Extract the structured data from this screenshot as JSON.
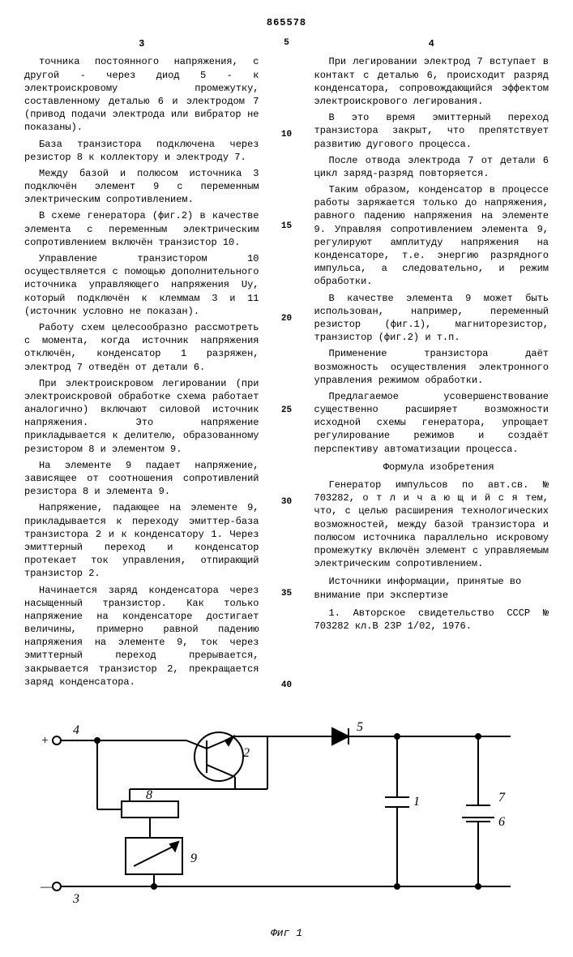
{
  "patent_number": "865578",
  "left_col_num": "3",
  "right_col_num": "4",
  "line_markers": [
    "5",
    "10",
    "15",
    "20",
    "25",
    "30",
    "35",
    "40"
  ],
  "left_paragraphs": [
    "точника постоянного напряжения, с другой - через диод 5 - к электроискровому промежутку, составленному деталью 6 и электродом 7 (привод подачи электрода или вибратор не показаны).",
    "База транзистора подключена через резистор 8 к коллектору и электроду 7.",
    "Между базой и полюсом источника 3 подключён элемент 9 с переменным электрическим сопротивлением.",
    "В схеме генератора (фиг.2) в качестве элемента с переменным электрическим сопротивлением включён транзистор 10.",
    "Управление транзистором 10 осуществляется с помощью дополнительного источника управляющего напряжения Uу, который подключён к клеммам 3 и 11 (источник условно не показан).",
    "Работу схем целесообразно рассмотреть с момента, когда источник напряжения отключён, конденсатор 1 разряжен, электрод 7 отведён от детали 6.",
    "При электроискровом легировании (при электроискровой обработке схема работает аналогично) включают силовой источник напряжения. Это напряжение прикладывается к делителю, образованному резистором 8 и элементом 9.",
    "На элементе 9 падает напряжение, зависящее от соотношения сопротивлений резистора 8 и элемента 9.",
    "Напряжение, падающее на элементе 9, прикладывается к переходу эмиттер-база транзистора 2 и к конденсатору 1. Через эмиттерный переход и конденсатор протекает ток управления, отпирающий транзистор 2.",
    "Начинается заряд конденсатора через насыщенный транзистор. Как только напряжение на конденсаторе достигает величины, примерно равной падению напряжения на элементе 9, ток через эмиттерный переход прерывается, закрывается транзистор 2, прекращается заряд конденсатора."
  ],
  "right_paragraphs": [
    "При легировании электрод 7 вступает в контакт с деталью 6, происходит разряд конденсатора, сопровождающийся эффектом электроискрового легирования.",
    "В это время эмиттерный переход транзистора закрыт, что препятствует развитию дугового процесса.",
    "После отвода электрода 7 от детали 6 цикл заряд-разряд повторяется.",
    "Таким образом, конденсатор в процессе работы заряжается только до напряжения, равного падению напряжения на элементе 9. Управляя сопротивлением элемента 9, регулируют амплитуду напряжения на конденсаторе, т.е. энергию разрядного импульса, а следовательно, и режим обработки.",
    "В качестве элемента 9 может быть использован, например, переменный резистор (фиг.1), магниторезистор, транзистор (фиг.2) и т.п.",
    "Применение транзистора даёт возможность осуществления электронного управления режимом обработки.",
    "Предлагаемое усовершенствование существенно расширяет возможности исходной схемы генератора, упрощает регулирование режимов и создаёт перспективу автоматизации процесса."
  ],
  "formula_heading": "Формула изобретения",
  "formula_text": "Генератор импульсов по авт.св. № 703282, о т л и ч а ю щ и й с я тем, что, с целью расширения технологических возможностей, между базой транзистора и полюсом источника параллельно искровому промежутку включён элемент с управляемым электрическим сопротивлением.",
  "sources_heading": "Источники информации, принятые во внимание при экспертизе",
  "sources_text": "1. Авторское свидетельство СССР № 703282 кл.В 23Р 1/02, 1976.",
  "figure_label": "Фиг 1",
  "circuit": {
    "labels": {
      "plus": "+",
      "minus": "—",
      "t4": "4",
      "t3": "3",
      "r8": "8",
      "r9": "9",
      "q2": "2",
      "d5": "5",
      "c1": "1",
      "e7": "7",
      "e6": "6"
    },
    "stroke": "#000000",
    "stroke_width": 2
  }
}
